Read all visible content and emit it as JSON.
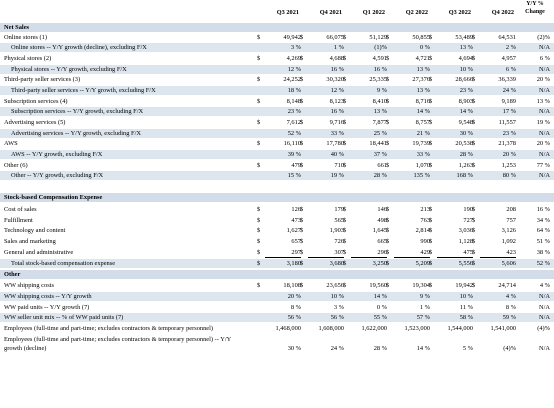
{
  "headers": {
    "columns": [
      "Q3 2021",
      "Q4 2021",
      "Q1 2022",
      "Q2 2022",
      "Q3 2022",
      "Q4 2022"
    ],
    "yy_line1": "Y/Y %",
    "yy_line2": "Change"
  },
  "rows": [
    {
      "type": "section",
      "label": "Net Sales"
    },
    {
      "type": "data",
      "label": "Online stores (1)",
      "dollar": true,
      "values": [
        "49,942",
        "66,075",
        "51,129",
        "50,855",
        "53,489",
        "64,531"
      ],
      "yy": "(2)%"
    },
    {
      "type": "sub",
      "label": "Online stores -- Y/Y growth (decline), excluding F/X",
      "values": [
        "3 %",
        "1 %",
        "(1)%",
        "0 %",
        "13 %",
        "2 %"
      ],
      "yy": "N/A"
    },
    {
      "type": "data",
      "label": "Physical stores (2)",
      "dollar": true,
      "values": [
        "4,269",
        "4,688",
        "4,591",
        "4,721",
        "4,694",
        "4,957"
      ],
      "yy": "6 %"
    },
    {
      "type": "sub",
      "label": "Physical stores -- Y/Y growth, excluding F/X",
      "values": [
        "12 %",
        "16 %",
        "16 %",
        "13 %",
        "10 %",
        "6 %"
      ],
      "yy": "N/A"
    },
    {
      "type": "data",
      "label": "Third-party seller services (3)",
      "dollar": true,
      "values": [
        "24,252",
        "30,320",
        "25,335",
        "27,376",
        "28,666",
        "36,339"
      ],
      "yy": "20 %"
    },
    {
      "type": "sub",
      "label": "Third-party seller services -- Y/Y growth, excluding F/X",
      "values": [
        "18 %",
        "12 %",
        "9 %",
        "13 %",
        "23 %",
        "24 %"
      ],
      "yy": "N/A"
    },
    {
      "type": "data",
      "label": "Subscription services (4)",
      "dollar": true,
      "values": [
        "8,148",
        "8,123",
        "8,410",
        "8,716",
        "8,903",
        "9,189"
      ],
      "yy": "13 %"
    },
    {
      "type": "sub",
      "label": "Subscription services -- Y/Y growth, excluding F/X",
      "values": [
        "23 %",
        "16 %",
        "13 %",
        "14 %",
        "14 %",
        "17 %"
      ],
      "yy": "N/A"
    },
    {
      "type": "data",
      "label": "Advertising services (5)",
      "dollar": true,
      "values": [
        "7,612",
        "9,716",
        "7,877",
        "8,757",
        "9,548",
        "11,557"
      ],
      "yy": "19 %"
    },
    {
      "type": "sub",
      "label": "Advertising services -- Y/Y growth, excluding F/X",
      "values": [
        "52 %",
        "33 %",
        "25 %",
        "21 %",
        "30 %",
        "23 %"
      ],
      "yy": "N/A"
    },
    {
      "type": "data",
      "label": "AWS",
      "dollar": true,
      "values": [
        "16,110",
        "17,780",
        "18,441",
        "19,739",
        "20,538",
        "21,378"
      ],
      "yy": "20 %"
    },
    {
      "type": "sub",
      "label": "AWS -- Y/Y growth, excluding F/X",
      "values": [
        "39 %",
        "40 %",
        "37 %",
        "33 %",
        "28 %",
        "20 %"
      ],
      "yy": "N/A"
    },
    {
      "type": "data",
      "label": "Other (6)",
      "dollar": true,
      "values": [
        "479",
        "710",
        "661",
        "1,070",
        "1,263",
        "1,253"
      ],
      "yy": "77 %"
    },
    {
      "type": "sub",
      "label": "Other -- Y/Y growth, excluding F/X",
      "values": [
        "15 %",
        "19 %",
        "28 %",
        "135 %",
        "168 %",
        "80 %"
      ],
      "yy": "N/A"
    },
    {
      "type": "blank"
    },
    {
      "type": "section",
      "label": "Stock-based Compensation Expense"
    },
    {
      "type": "data",
      "label": "Cost of sales",
      "dollar": true,
      "values": [
        "126",
        "179",
        "146",
        "213",
        "190",
        "208"
      ],
      "yy": "16 %"
    },
    {
      "type": "data",
      "label": "Fulfillment",
      "dollar": true,
      "values": [
        "473",
        "565",
        "498",
        "763",
        "727",
        "757"
      ],
      "yy": "34 %"
    },
    {
      "type": "data",
      "label": "Technology and content",
      "dollar": true,
      "values": [
        "1,627",
        "1,903",
        "1,645",
        "2,814",
        "3,036",
        "3,126"
      ],
      "yy": "64 %"
    },
    {
      "type": "data",
      "label": "Sales and marketing",
      "dollar": true,
      "values": [
        "657",
        "726",
        "665",
        "990",
        "1,128",
        "1,092"
      ],
      "yy": "51 %"
    },
    {
      "type": "data",
      "label": "General and administrative",
      "dollar": true,
      "values": [
        "297",
        "307",
        "296",
        "429",
        "475",
        "423"
      ],
      "yy": "38 %"
    },
    {
      "type": "sub",
      "label": "Total stock-based compensation expense",
      "dollar": true,
      "values": [
        "3,180",
        "3,680",
        "3,250",
        "5,209",
        "5,556",
        "5,606"
      ],
      "yy": "52 %"
    },
    {
      "type": "section",
      "label": "Other"
    },
    {
      "type": "data",
      "label": "WW shipping costs",
      "dollar": true,
      "values": [
        "18,108",
        "23,656",
        "19,560",
        "19,304",
        "19,942",
        "24,714"
      ],
      "yy": "4 %"
    },
    {
      "type": "data",
      "label": "WW shipping costs -- Y/Y growth",
      "values": [
        "20 %",
        "10 %",
        "14 %",
        "9 %",
        "10 %",
        "4 %"
      ],
      "yy": "N/A"
    },
    {
      "type": "data",
      "label": "WW paid units -- Y/Y growth (7)",
      "values": [
        "8 %",
        "3 %",
        "0 %",
        "1 %",
        "11 %",
        "8 %"
      ],
      "yy": "N/A"
    },
    {
      "type": "data",
      "label": "WW seller unit mix -- % of WW paid units (7)",
      "values": [
        "56 %",
        "56 %",
        "55 %",
        "57 %",
        "58 %",
        "59 %"
      ],
      "yy": "N/A"
    },
    {
      "type": "data",
      "label": "Employees (full-time and part-time; excludes contractors & temporary personnel)",
      "values": [
        "1,468,000",
        "1,608,000",
        "1,622,000",
        "1,523,000",
        "1,544,000",
        "1,541,000"
      ],
      "yy": "(4)%"
    },
    {
      "type": "wrap",
      "label": "Employees (full-time and part-time; excludes contractors & temporary personnel) -- Y/Y",
      "label2": "growth (decline)",
      "values": [
        "30 %",
        "24 %",
        "28 %",
        "14 %",
        "5 %",
        "(4)%"
      ],
      "yy": "N/A"
    }
  ]
}
